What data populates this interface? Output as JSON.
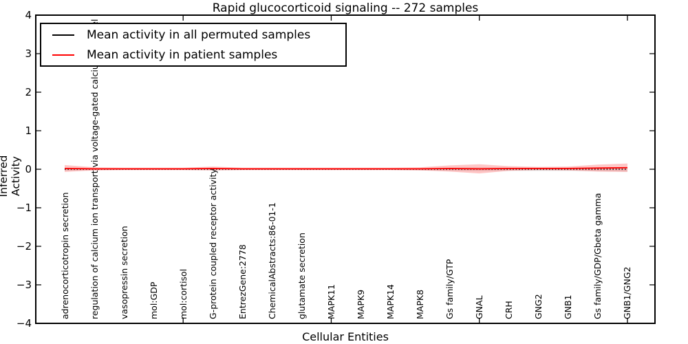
{
  "chart_data": {
    "type": "line",
    "title": "Rapid glucocorticoid signaling -- 272 samples",
    "xlabel": "Cellular Entities",
    "ylabel": "Inferred Activity",
    "ylim": [
      -4,
      4
    ],
    "ytick_labels": [
      "4",
      "3",
      "2",
      "1",
      "0",
      "−1",
      "−2",
      "−3",
      "−4"
    ],
    "grid": false,
    "legend_position": "upper left",
    "categories": [
      "adrenocorticotropin secretion",
      "regulation of calcium ion transport via voltage-gated calcium channel",
      "vasopressin secretion",
      "mol:GDP",
      "mol:cortisol",
      "G-protein coupled receptor activity",
      "EntrezGene:2778",
      "ChemicalAbstracts:86-01-1",
      "glutamate secretion",
      "MAPK11",
      "MAPK9",
      "MAPK14",
      "MAPK8",
      "Gs family/GTP",
      "GNAL",
      "CRH",
      "GNG2",
      "GNB1",
      "Gs family/GDP/Gbeta gamma",
      "GNB1/GNG2"
    ],
    "series": [
      {
        "name": "Mean activity in all permuted samples",
        "color": "#000000",
        "band_color": "#c8c8c8",
        "line_style": "dotted",
        "values": [
          0,
          0,
          0,
          0,
          0,
          0,
          0,
          0,
          0,
          0,
          0,
          0,
          0,
          0,
          0,
          0,
          0,
          0,
          0,
          0
        ],
        "std": [
          0.04,
          0.02,
          0.02,
          0.02,
          0.02,
          0.03,
          0.02,
          0.02,
          0.02,
          0.02,
          0.02,
          0.02,
          0.03,
          0.04,
          0.05,
          0.04,
          0.04,
          0.04,
          0.05,
          0.06
        ]
      },
      {
        "name": "Mean activity in patient samples",
        "color": "#ff0000",
        "band_color": "#ff8080",
        "line_style": "solid",
        "values": [
          0.02,
          0.01,
          0.01,
          0.01,
          0.01,
          0.02,
          0.01,
          0.01,
          0.01,
          0.01,
          0.01,
          0.01,
          0.01,
          0.02,
          0.01,
          0.02,
          0.02,
          0.02,
          0.03,
          0.04
        ],
        "std": [
          0.09,
          0.04,
          0.03,
          0.03,
          0.03,
          0.05,
          0.03,
          0.03,
          0.03,
          0.03,
          0.03,
          0.03,
          0.04,
          0.08,
          0.12,
          0.06,
          0.04,
          0.05,
          0.09,
          0.11
        ]
      }
    ]
  }
}
